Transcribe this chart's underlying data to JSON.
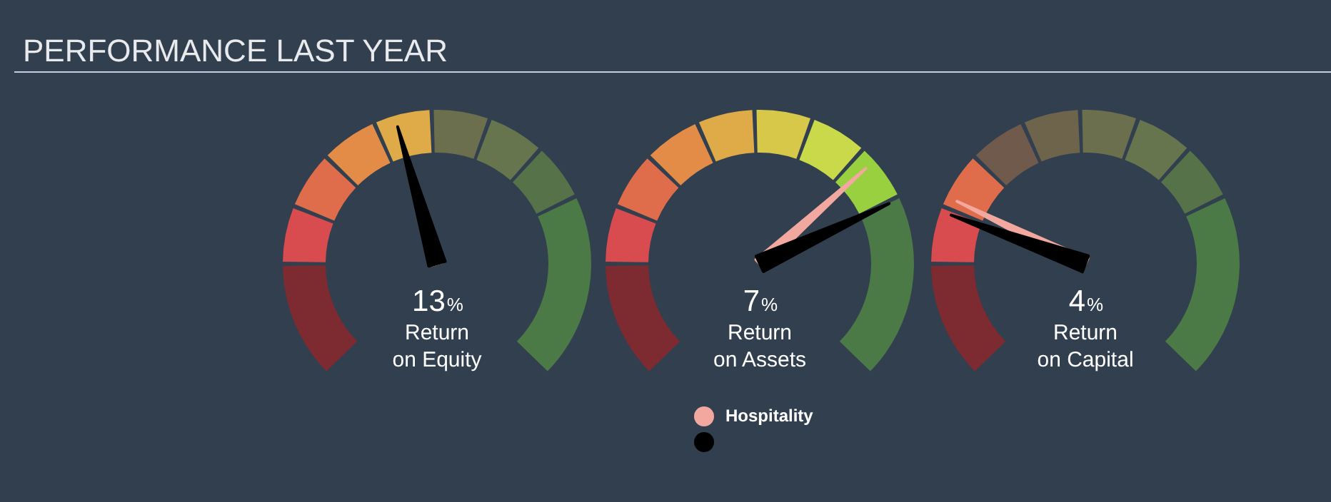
{
  "chart_data": {
    "type": "other",
    "title": "PERFORMANCE LAST YEAR",
    "categories": [
      "Return on Equity",
      "Return on Assets",
      "Return on Capital"
    ],
    "series": [
      {
        "name": "Hospitality",
        "color": "#f2a89e",
        "values": [
          null,
          null,
          null
        ]
      },
      {
        "color": "#000000",
        "values": [
          13,
          7,
          4
        ],
        "value_labels": [
          "13%",
          "7%",
          "4%"
        ]
      }
    ],
    "legend": "bottom"
  }
}
